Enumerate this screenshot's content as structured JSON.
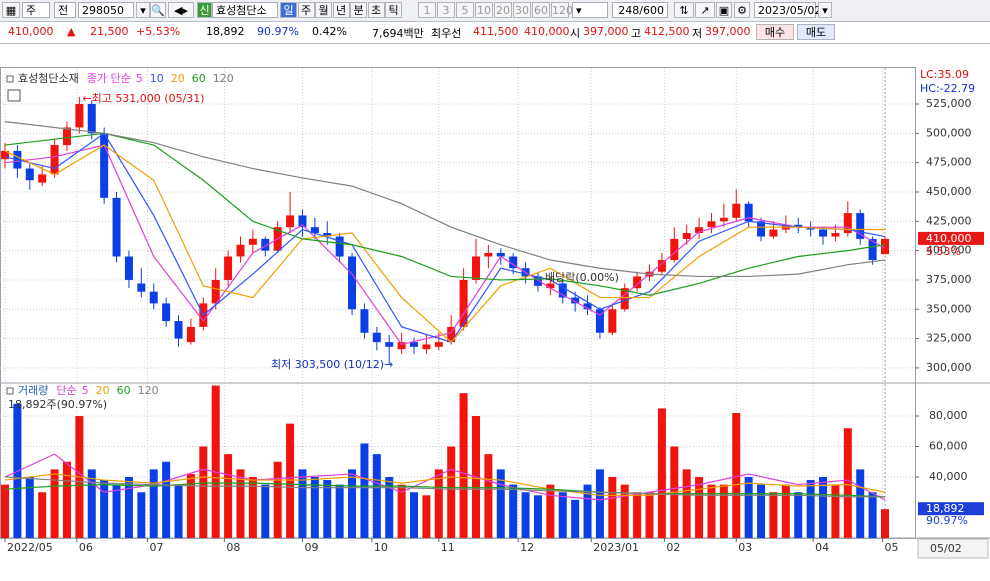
{
  "toolbar": {
    "market": "주",
    "scope": "전",
    "code": "298050",
    "new_flag": "신",
    "name": "효성첨단소",
    "periods": [
      "일",
      "주",
      "월",
      "년",
      "분",
      "초",
      "틱"
    ],
    "intervals": [
      "1",
      "3",
      "5",
      "10",
      "20",
      "30",
      "60",
      "120"
    ],
    "count": "248/600",
    "date": "2023/05/02"
  },
  "quote": {
    "price": "410,000",
    "arrow": "▲",
    "change": "21,500",
    "change_pct": "+5.53%",
    "volume": "18,892",
    "vol_ratio": "90.97%",
    "turnover_pct": "0.42%",
    "amount": "7,694백만",
    "best_label": "최우선",
    "ask": "411,500",
    "bid": "410,000",
    "open_label": "시",
    "open": "397,000",
    "high_label": "고",
    "high": "412,500",
    "low_label": "저",
    "low": "397,000",
    "buy": "매수",
    "sell": "매도"
  },
  "chart_data": [
    {
      "type": "candlestick",
      "title": "효성첨단소재",
      "legend_label": "종가 단순",
      "lc": "LC:35.09",
      "hc": "HC:-22.79",
      "last_price_label": "410,000",
      "last_pct_label": "5.53%",
      "high_note": "←최고 531,000 (05/31)",
      "low_note": "최저 303,500 (10/12)→",
      "dividend_note": "배당락(0.00%)",
      "cursor_date": "05/02",
      "xlim": [
        0,
        71
      ],
      "xticks": [
        {
          "value": 0,
          "label": "2022/05"
        },
        {
          "value": 5.8,
          "label": "06"
        },
        {
          "value": 11.5,
          "label": "07"
        },
        {
          "value": 17.7,
          "label": "08"
        },
        {
          "value": 24,
          "label": "09"
        },
        {
          "value": 29.6,
          "label": "10"
        },
        {
          "value": 35,
          "label": "11"
        },
        {
          "value": 41.4,
          "label": "12"
        },
        {
          "value": 47.3,
          "label": "2023/01"
        },
        {
          "value": 53.2,
          "label": "02"
        },
        {
          "value": 59,
          "label": "03"
        },
        {
          "value": 65.2,
          "label": "04"
        },
        {
          "value": 70.8,
          "label": "05"
        }
      ],
      "ylim": [
        288000,
        554000
      ],
      "yticks": [
        {
          "value": 300000,
          "label": "300,000"
        },
        {
          "value": 325000,
          "label": "325,000"
        },
        {
          "value": 350000,
          "label": "350,000"
        },
        {
          "value": 375000,
          "label": "375,000"
        },
        {
          "value": 400000,
          "label": "400,000"
        },
        {
          "value": 425000,
          "label": "425,000"
        },
        {
          "value": 450000,
          "label": "450,000"
        },
        {
          "value": 475000,
          "label": "475,000"
        },
        {
          "value": 500000,
          "label": "500,000"
        },
        {
          "value": 525000,
          "label": "525,000"
        }
      ],
      "grid": true,
      "up_color": "#f0140f",
      "down_color": "#0b3fe6",
      "open": [
        478000,
        485000,
        470000,
        458000,
        465000,
        490000,
        505000,
        525000,
        500000,
        445000,
        395000,
        372000,
        365000,
        355000,
        340000,
        322000,
        335000,
        355000,
        375000,
        395000,
        405000,
        410000,
        400000,
        420000,
        430000,
        420000,
        415000,
        412000,
        395000,
        350000,
        330000,
        322000,
        316000,
        322000,
        316000,
        318000,
        322000,
        335000,
        375000,
        395000,
        398000,
        395000,
        385000,
        378000,
        368000,
        372000,
        360000,
        355000,
        350000,
        330000,
        350000,
        368000,
        378000,
        382000,
        392000,
        410000,
        415000,
        420000,
        425000,
        428000,
        440000,
        425000,
        412000,
        418000,
        422000,
        420000,
        418000,
        412000,
        415000,
        432000,
        410000,
        397000
      ],
      "high": [
        492000,
        490000,
        475000,
        472000,
        495000,
        510000,
        531000,
        528000,
        505000,
        450000,
        400000,
        385000,
        372000,
        360000,
        345000,
        342000,
        360000,
        385000,
        400000,
        412000,
        418000,
        412000,
        425000,
        450000,
        435000,
        428000,
        425000,
        415000,
        398000,
        355000,
        335000,
        328000,
        330000,
        326000,
        328000,
        330000,
        345000,
        385000,
        410000,
        405000,
        402000,
        398000,
        390000,
        382000,
        378000,
        375000,
        365000,
        362000,
        352000,
        355000,
        372000,
        382000,
        388000,
        398000,
        420000,
        422000,
        428000,
        432000,
        440000,
        452000,
        442000,
        428000,
        425000,
        430000,
        428000,
        425000,
        420000,
        422000,
        442000,
        435000,
        412000,
        412500
      ],
      "low": [
        470000,
        462000,
        452000,
        455000,
        462000,
        485000,
        500000,
        495000,
        440000,
        390000,
        368000,
        360000,
        350000,
        335000,
        318000,
        320000,
        332000,
        350000,
        370000,
        390000,
        398000,
        395000,
        398000,
        415000,
        412000,
        410000,
        405000,
        390000,
        345000,
        325000,
        315000,
        303500,
        312000,
        312000,
        312000,
        315000,
        320000,
        332000,
        372000,
        385000,
        388000,
        380000,
        372000,
        365000,
        362000,
        355000,
        348000,
        345000,
        325000,
        328000,
        348000,
        365000,
        374000,
        380000,
        390000,
        405000,
        410000,
        415000,
        420000,
        425000,
        420000,
        408000,
        410000,
        415000,
        415000,
        412000,
        405000,
        408000,
        412000,
        405000,
        388000,
        397000
      ],
      "close": [
        485000,
        470000,
        460000,
        465000,
        490000,
        505000,
        525000,
        500000,
        445000,
        395000,
        375000,
        365000,
        355000,
        340000,
        325000,
        335000,
        355000,
        375000,
        395000,
        405000,
        410000,
        400000,
        420000,
        430000,
        420000,
        415000,
        412000,
        395000,
        350000,
        330000,
        322000,
        318000,
        322000,
        318000,
        320000,
        322000,
        335000,
        375000,
        395000,
        398000,
        395000,
        385000,
        378000,
        370000,
        372000,
        360000,
        355000,
        350000,
        330000,
        350000,
        368000,
        378000,
        382000,
        392000,
        410000,
        415000,
        420000,
        425000,
        428000,
        440000,
        425000,
        412000,
        418000,
        422000,
        420000,
        418000,
        412000,
        415000,
        432000,
        410000,
        392000,
        410000
      ],
      "ma_x": [
        0,
        4,
        8,
        12,
        16,
        20,
        24,
        28,
        32,
        36,
        40,
        44,
        48,
        52,
        56,
        60,
        64,
        68,
        71
      ],
      "series": [
        {
          "name": "5",
          "color": "#e03ce0",
          "values": [
            475000,
            480000,
            490000,
            395000,
            340000,
            398000,
            422000,
            380000,
            320000,
            330000,
            395000,
            368000,
            345000,
            380000,
            416000,
            428000,
            420000,
            420000,
            402000
          ]
        },
        {
          "name": "10",
          "color": "#2f55ff",
          "values": [
            480000,
            470000,
            500000,
            430000,
            345000,
            380000,
            418000,
            405000,
            335000,
            322000,
            385000,
            375000,
            350000,
            365000,
            408000,
            425000,
            420000,
            418000,
            412000
          ]
        },
        {
          "name": "20",
          "color": "#f0a000",
          "values": [
            485000,
            465000,
            490000,
            460000,
            370000,
            360000,
            410000,
            415000,
            360000,
            322000,
            370000,
            385000,
            360000,
            360000,
            395000,
            420000,
            420000,
            418000,
            418000
          ]
        },
        {
          "name": "60",
          "color": "#1e9e1e",
          "values": [
            490000,
            495000,
            500000,
            490000,
            460000,
            425000,
            410000,
            405000,
            395000,
            378000,
            375000,
            376000,
            370000,
            362000,
            372000,
            385000,
            395000,
            400000,
            405000
          ]
        },
        {
          "name": "120",
          "color": "#808080",
          "values": [
            510000,
            505000,
            500000,
            492000,
            480000,
            470000,
            462000,
            455000,
            440000,
            420000,
            405000,
            392000,
            385000,
            380000,
            378000,
            378000,
            380000,
            388000,
            392000
          ]
        }
      ]
    },
    {
      "type": "bar",
      "title": "거래량",
      "legend_label": "단순",
      "current_label": "18,892주(90.97%)",
      "last_volume_label": "18,892",
      "last_ratio_label": "90.97%",
      "ylim": [
        0,
        101000
      ],
      "yticks": [
        {
          "value": 40000,
          "label": "40,000"
        },
        {
          "value": 60000,
          "label": "60,000"
        },
        {
          "value": 80000,
          "label": "80,000"
        }
      ],
      "values": [
        35000,
        88000,
        40000,
        30000,
        45000,
        50000,
        80000,
        45000,
        38000,
        35000,
        40000,
        30000,
        45000,
        50000,
        35000,
        42000,
        60000,
        100000,
        55000,
        45000,
        40000,
        35000,
        50000,
        75000,
        45000,
        40000,
        38000,
        35000,
        45000,
        62000,
        55000,
        40000,
        35000,
        30000,
        28000,
        45000,
        60000,
        95000,
        80000,
        55000,
        45000,
        35000,
        30000,
        28000,
        35000,
        30000,
        25000,
        35000,
        45000,
        40000,
        35000,
        30000,
        30000,
        85000,
        60000,
        45000,
        40000,
        35000,
        35000,
        82000,
        40000,
        35000,
        30000,
        35000,
        30000,
        38000,
        40000,
        35000,
        72000,
        45000,
        30000,
        18892
      ],
      "series": [
        {
          "name": "5",
          "color": "#e03ce0",
          "values": [
            40000,
            55000,
            30000,
            35000,
            45000,
            38000,
            40000,
            42000,
            30000,
            45000,
            35000,
            28000,
            25000,
            30000,
            35000,
            42000,
            35000,
            38000,
            25000
          ]
        },
        {
          "name": "20",
          "color": "#f0a000",
          "values": [
            38000,
            42000,
            38000,
            36000,
            40000,
            38000,
            38000,
            40000,
            36000,
            40000,
            38000,
            32000,
            28000,
            28000,
            32000,
            36000,
            34000,
            35000,
            30000
          ]
        },
        {
          "name": "60",
          "color": "#1e9e1e",
          "values": [
            32000,
            34000,
            35000,
            34000,
            36000,
            36000,
            35000,
            34000,
            34000,
            33000,
            33000,
            32000,
            30000,
            29000,
            29000,
            29000,
            29000,
            28000,
            27000
          ]
        },
        {
          "name": "120",
          "color": "#808080",
          "values": [
            40000,
            38000,
            36000,
            35000,
            34000,
            34000,
            33000,
            33000,
            33000,
            32000,
            32000,
            31000,
            30000,
            29000,
            28000,
            28000,
            28000,
            27000,
            27000
          ]
        }
      ]
    }
  ]
}
